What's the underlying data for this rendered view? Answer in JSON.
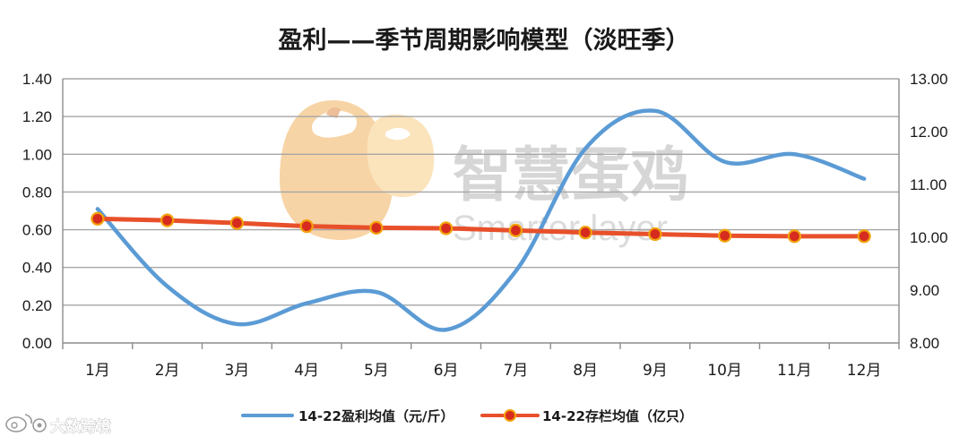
{
  "chart_data": {
    "type": "line",
    "title": "盈利——季节周期影响模型（淡旺季）",
    "categories": [
      "1月",
      "2月",
      "3月",
      "4月",
      "5月",
      "6月",
      "7月",
      "8月",
      "9月",
      "10月",
      "11月",
      "12月"
    ],
    "y_left": {
      "range": [
        0,
        1.4
      ],
      "ticks": [
        "0.00",
        "0.20",
        "0.40",
        "0.60",
        "0.80",
        "1.00",
        "1.20",
        "1.40"
      ]
    },
    "y_right": {
      "range": [
        8.0,
        13.0
      ],
      "ticks": [
        "8.00",
        "9.00",
        "10.00",
        "11.00",
        "12.00",
        "13.00"
      ]
    },
    "grid": true,
    "legend_position": "bottom",
    "series": [
      {
        "name": "14-22盈利均值（元/斤）",
        "axis": "left",
        "color": "#5b9bd5",
        "marker": "none",
        "smooth": true,
        "values": [
          0.71,
          0.3,
          0.1,
          0.21,
          0.27,
          0.07,
          0.38,
          1.03,
          1.23,
          0.96,
          1.0,
          0.87
        ]
      },
      {
        "name": "14-22存栏均值（亿只）",
        "axis": "right",
        "color": "#e8502a",
        "marker": "circle",
        "smooth": false,
        "values": [
          10.35,
          10.32,
          10.27,
          10.21,
          10.18,
          10.17,
          10.13,
          10.09,
          10.06,
          10.03,
          10.02,
          10.02
        ]
      }
    ]
  },
  "watermark": {
    "cn": "智慧蛋鸡",
    "en": "Smarter layer"
  },
  "footer": {
    "brand": "大数跨境"
  }
}
